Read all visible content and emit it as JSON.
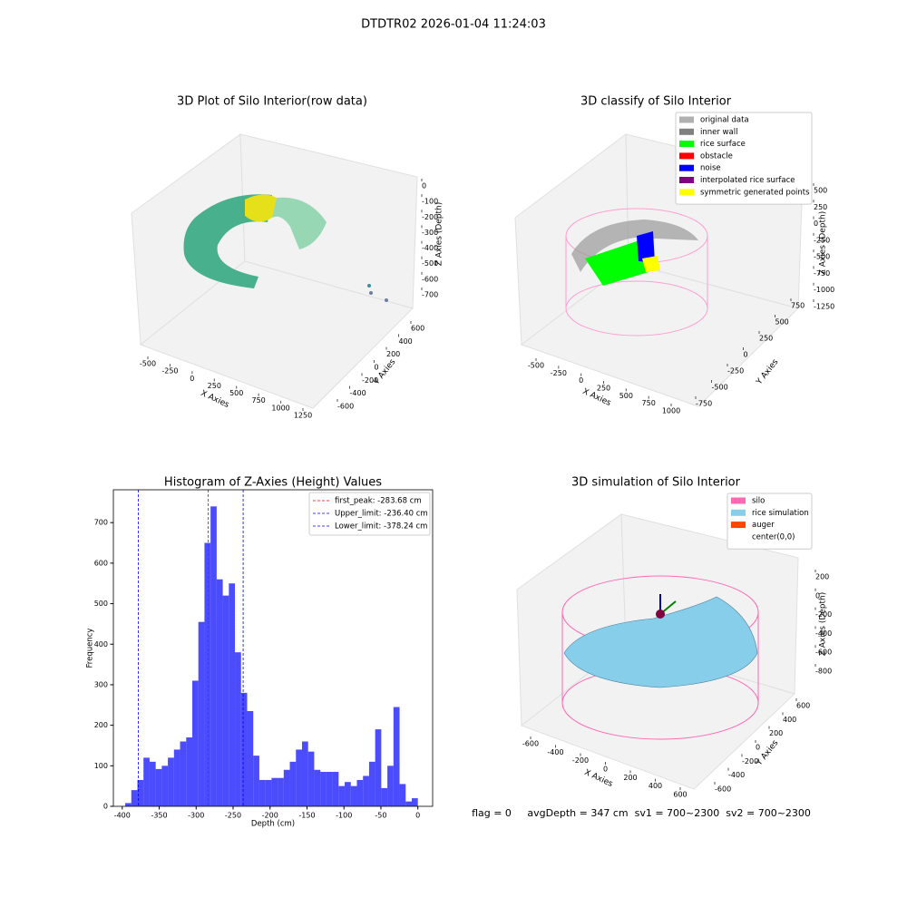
{
  "title": "DTDTR02 2026-01-04 11:24:03",
  "footer": "flag = 0     avgDepth = 347 cm  sv1 = 700~2300  sv2 = 700~2300",
  "chart_data": [
    {
      "type": "scatter3d",
      "title": "3D Plot of Silo Interior(row data)",
      "xlabel": "X Axies",
      "ylabel": "Y Axies",
      "zlabel": "Z Axies (Depth)",
      "xticks": [
        -500,
        -250,
        0,
        250,
        500,
        750,
        1000,
        1250
      ],
      "yticks": [
        -600,
        -400,
        -200,
        0,
        200,
        400,
        600
      ],
      "zticks": [
        0,
        -100,
        -200,
        -300,
        -400,
        -500,
        -600,
        -700
      ]
    },
    {
      "type": "scatter3d",
      "title": "3D classify of Silo Interior",
      "xlabel": "X Axies",
      "ylabel": "Y Axies",
      "zlabel": "Z Axies (Depth)",
      "xticks": [
        -500,
        -250,
        0,
        250,
        500,
        750,
        1000
      ],
      "yticks": [
        -750,
        -500,
        -250,
        0,
        250,
        500,
        750
      ],
      "zticks": [
        500,
        250,
        0,
        -250,
        -500,
        -750,
        -1000,
        -1250
      ],
      "legend": [
        {
          "name": "original data",
          "color": "#b0b0b0"
        },
        {
          "name": "inner wall",
          "color": "#808080"
        },
        {
          "name": "rice surface",
          "color": "#00ff00"
        },
        {
          "name": "obstacle",
          "color": "#ff0000"
        },
        {
          "name": "noise",
          "color": "#0000ff"
        },
        {
          "name": "interpolated rice surface",
          "color": "#800080"
        },
        {
          "name": "symmetric generated points",
          "color": "#ffff00"
        }
      ]
    },
    {
      "type": "histogram",
      "title": "Histogram of Z-Axies (Height) Values",
      "xlabel": "Depth (cm)",
      "ylabel": "Frequency",
      "color": "#0000ff",
      "bins": [
        -396,
        -387.75,
        -379.5,
        -371.25,
        -363,
        -354.75,
        -346.5,
        -338.25,
        -330,
        -321.75,
        -313.5,
        -305.25,
        -297,
        -288.75,
        -280.5,
        -272.25,
        -264,
        -255.75,
        -247.5,
        -239.25,
        -231,
        -222.75,
        -214.5,
        -206.25,
        -198,
        -189.75,
        -181.5,
        -173.25,
        -165,
        -156.75,
        -148.5,
        -140.25,
        -132,
        -123.75,
        -115.5,
        -107.25,
        -99,
        -90.75,
        -82.5,
        -74.25,
        -66,
        -57.75,
        -49.5,
        -41.25,
        -33,
        -24.75,
        -16.5,
        -8.25,
        0
      ],
      "counts": [
        8,
        40,
        65,
        120,
        110,
        92,
        100,
        120,
        140,
        160,
        170,
        310,
        455,
        650,
        740,
        560,
        520,
        550,
        380,
        280,
        235,
        125,
        65,
        65,
        70,
        70,
        90,
        110,
        140,
        160,
        135,
        90,
        85,
        85,
        85,
        50,
        60,
        50,
        65,
        75,
        110,
        190,
        45,
        100,
        245,
        55,
        12,
        20
      ],
      "xlim": [
        -412,
        20
      ],
      "ylim": [
        0,
        781
      ],
      "xticks": [
        -400,
        -350,
        -300,
        -250,
        -200,
        -150,
        -100,
        -50,
        0
      ],
      "yticks": [
        0,
        100,
        200,
        300,
        400,
        500,
        600,
        700
      ],
      "vlines": [
        {
          "label": "first_peak: -283.68 cm",
          "value": -283.68,
          "color": "#ff0000"
        },
        {
          "label": "Upper_limit: -236.40 cm",
          "value": -236.4,
          "color": "#0000ff"
        },
        {
          "label": "Lower_limit: -378.24 cm",
          "value": -378.24,
          "color": "#0000ff"
        }
      ],
      "legend_position": "upper right"
    },
    {
      "type": "surface3d",
      "title": "3D simulation of Silo Interior",
      "xlabel": "X Axies",
      "ylabel": "Y Axies",
      "zlabel": "Z Axies (Depth)",
      "xticks": [
        -600,
        -400,
        -200,
        0,
        200,
        400,
        600
      ],
      "yticks": [
        -600,
        -400,
        -200,
        0,
        200,
        400,
        600
      ],
      "zticks": [
        200,
        0,
        -200,
        -400,
        -600,
        -800
      ],
      "legend": [
        {
          "name": "silo",
          "color": "#ff69b4"
        },
        {
          "name": "rice simulation",
          "color": "#87ceeb"
        },
        {
          "name": "auger",
          "color": "#ff4500"
        },
        {
          "name": "center(0,0)"
        }
      ]
    }
  ]
}
